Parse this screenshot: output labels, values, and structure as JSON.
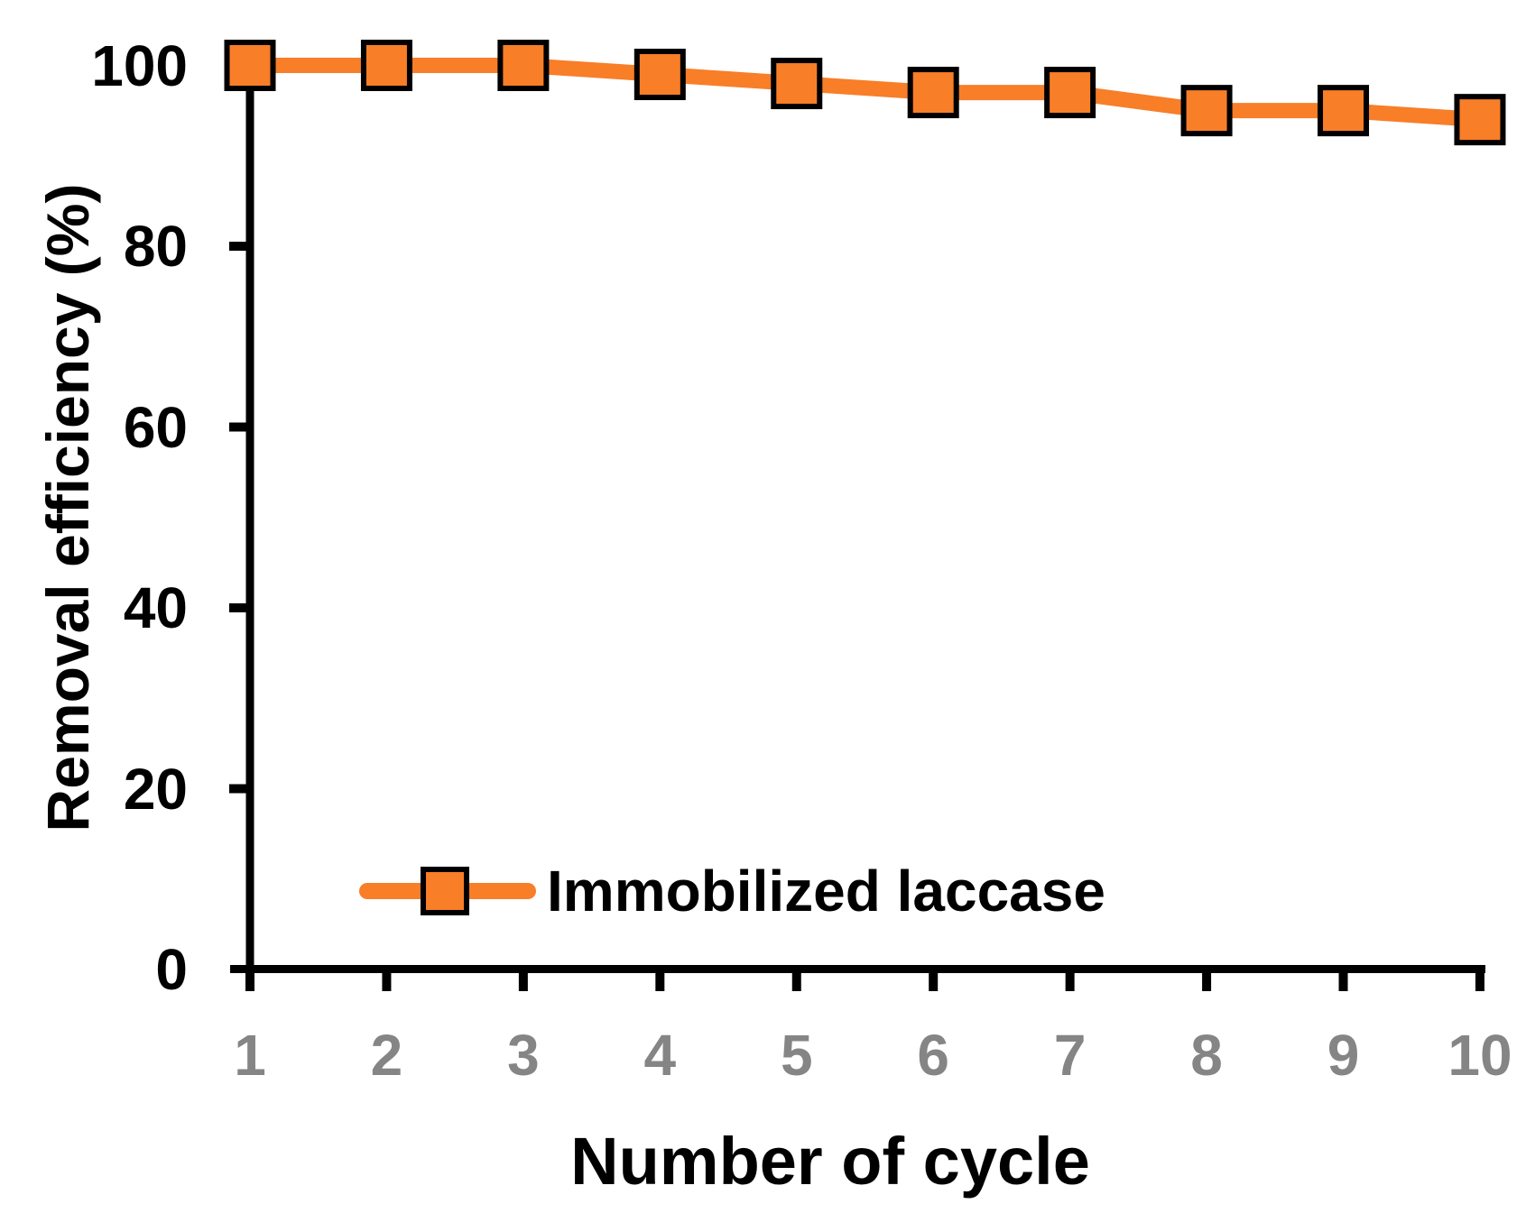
{
  "chart_data": {
    "type": "line",
    "title": "",
    "xlabel": "Number of cycle",
    "ylabel": "Removal efficiency (%)",
    "x": [
      1,
      2,
      3,
      4,
      5,
      6,
      7,
      8,
      9,
      10
    ],
    "x_tick_labels": [
      "1",
      "2",
      "3",
      "4",
      "5",
      "6",
      "7",
      "8",
      "9",
      "10"
    ],
    "y_ticks": [
      0,
      20,
      40,
      60,
      80,
      100
    ],
    "ylim": [
      0,
      100
    ],
    "xlim": [
      1,
      10
    ],
    "grid": false,
    "legend_position": "inside-bottom-left",
    "series": [
      {
        "name": "Immobilized laccase",
        "marker": "square",
        "values": [
          100,
          100,
          100,
          99,
          98,
          97,
          97,
          95,
          95,
          94
        ]
      }
    ],
    "colors": {
      "series": "#F87E28",
      "marker_fill": "#F87E28",
      "marker_edge": "#000000",
      "axis": "#000000",
      "y_tick_label": "#000000",
      "x_tick_label": "#858585"
    }
  },
  "legend": {
    "label": "Immobilized laccase"
  }
}
